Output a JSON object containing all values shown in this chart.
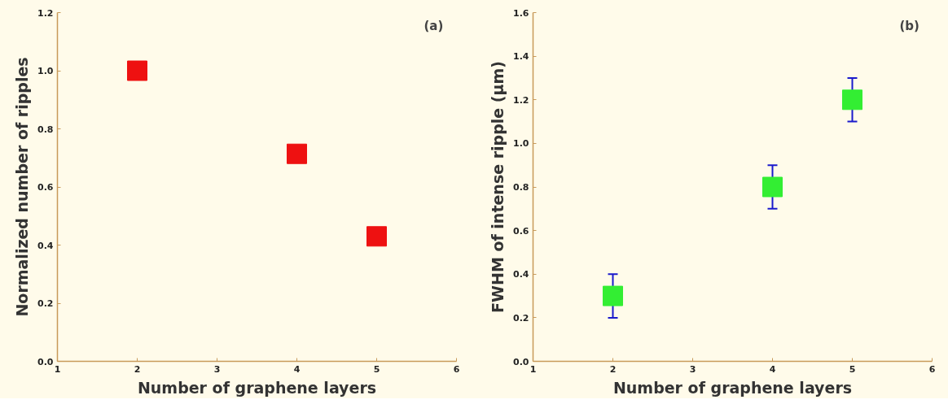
{
  "chart_data": [
    {
      "type": "scatter",
      "xlabel": "Number of graphene layers",
      "ylabel": "Normalized number of ripples",
      "annotations": [
        "(a)"
      ],
      "x": [
        2,
        4,
        5
      ],
      "series": [
        {
          "color": "#ee1111",
          "values": [
            1.0,
            0.714,
            0.43
          ]
        }
      ],
      "marker": "square",
      "grid": false,
      "xlim": [
        1,
        6
      ],
      "xticks": [
        1,
        2,
        3,
        4,
        5,
        6
      ],
      "ylim": [
        0,
        1.2
      ],
      "yticks": [
        {
          "value": 0,
          "label": "0.0"
        },
        {
          "value": 0.2,
          "label": "0.2"
        },
        {
          "value": 0.4,
          "label": "0.4"
        },
        {
          "value": 0.6,
          "label": "0.6"
        },
        {
          "value": 0.8,
          "label": "0.8"
        },
        {
          "value": 1.0,
          "label": "1.0"
        },
        {
          "value": 1.2,
          "label": "1.2"
        }
      ]
    },
    {
      "type": "scatter",
      "xlabel": "Number of graphene layers",
      "ylabel": "FWHM of intense ripple (μm)",
      "annotations": [
        "(b)"
      ],
      "x": [
        2,
        4,
        5
      ],
      "series": [
        {
          "color": "#33ee33",
          "values": [
            0.3,
            0.8,
            1.2
          ],
          "errors": [
            0.1,
            0.1,
            0.1
          ]
        }
      ],
      "marker": "square",
      "grid": false,
      "xlim": [
        1,
        6
      ],
      "xticks": [
        1,
        2,
        3,
        4,
        5,
        6
      ],
      "ylim": [
        0,
        1.6
      ],
      "yticks": [
        {
          "value": 0,
          "label": "0.0"
        },
        {
          "value": 0.2,
          "label": "0.2"
        },
        {
          "value": 0.4,
          "label": "0.4"
        },
        {
          "value": 0.6,
          "label": "0.6"
        },
        {
          "value": 0.8,
          "label": "0.8"
        },
        {
          "value": 1.0,
          "label": "1.0"
        },
        {
          "value": 1.2,
          "label": "1.2"
        },
        {
          "value": 1.4,
          "label": "1.4"
        },
        {
          "value": 1.6,
          "label": "1.6"
        }
      ]
    }
  ]
}
